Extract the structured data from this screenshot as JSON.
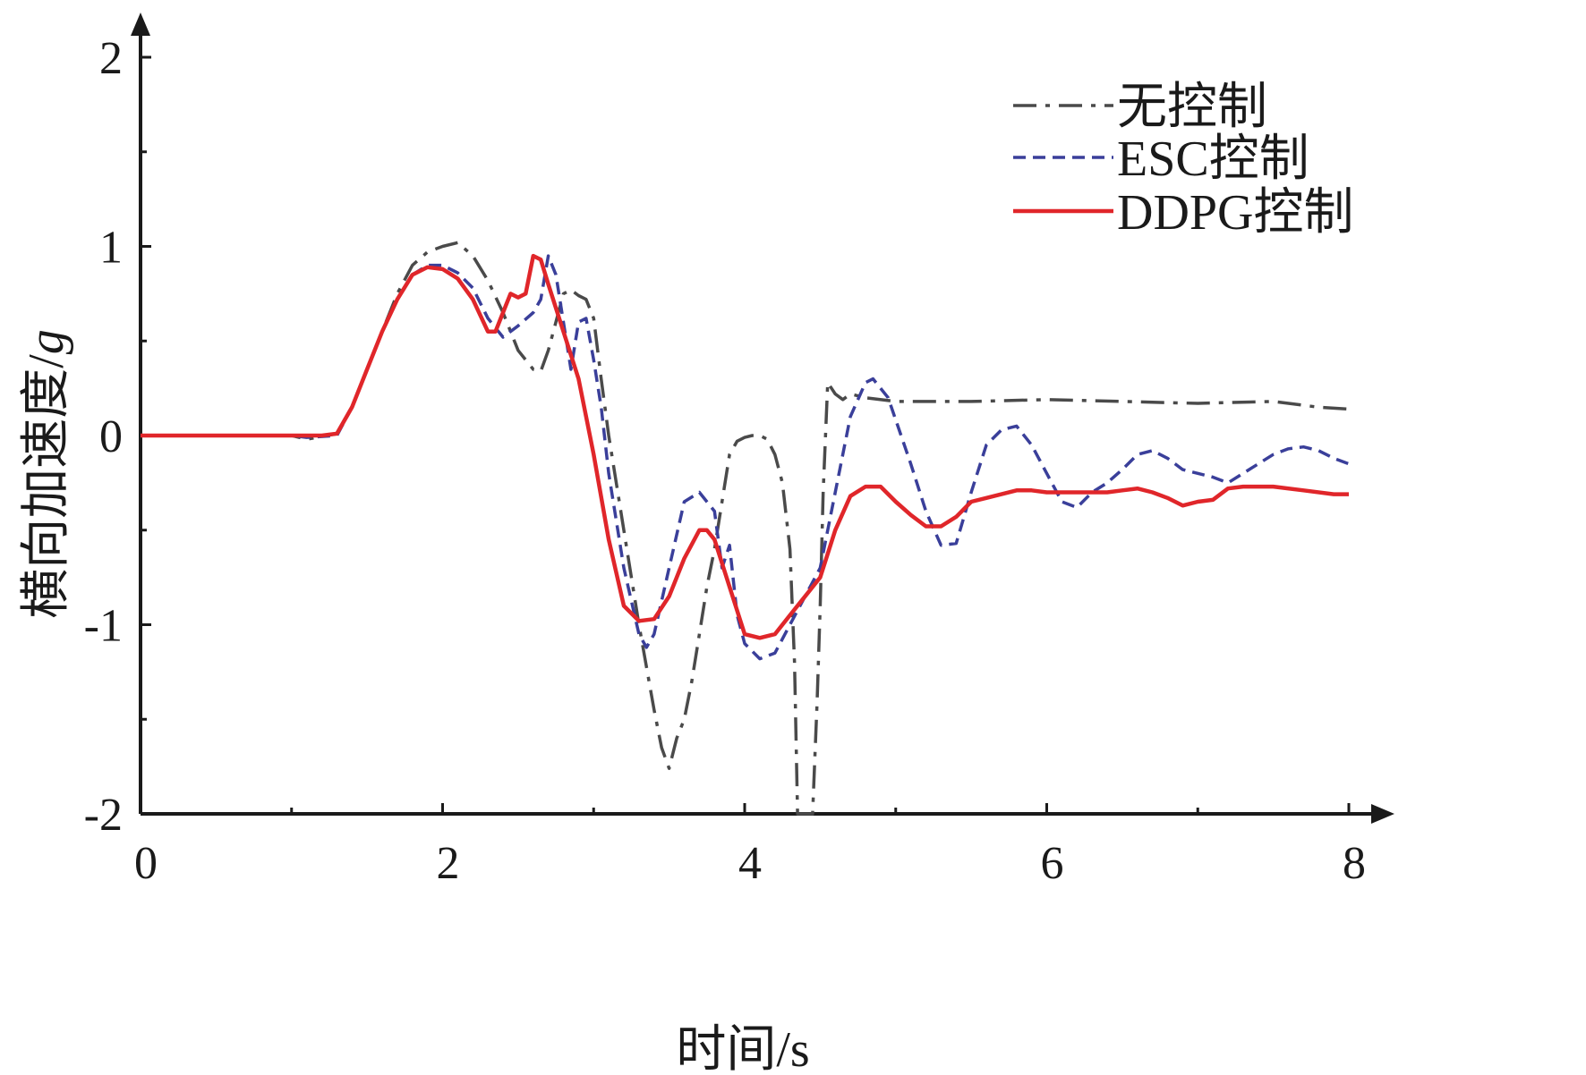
{
  "chart_data": {
    "type": "line",
    "title": "",
    "xlabel": "时间/s",
    "ylabel": "横向加速度/",
    "ylabel_unit": "g",
    "xlim": [
      0,
      8
    ],
    "ylim": [
      -2,
      2
    ],
    "x_ticks": [
      0,
      2,
      4,
      6,
      8
    ],
    "x_tick_labels": [
      "0",
      "2",
      "4",
      "6",
      "8"
    ],
    "y_ticks": [
      -2,
      -1,
      0,
      1,
      2
    ],
    "y_tick_labels": [
      "-2",
      "-1",
      "0",
      "1",
      "2"
    ],
    "grid": false,
    "legend_position": "top-right",
    "series": [
      {
        "name": "无控制",
        "color": "#4a4a4a",
        "style": "dash-dot",
        "points": [
          [
            0,
            0
          ],
          [
            1.0,
            0
          ],
          [
            1.1,
            -0.02
          ],
          [
            1.3,
            0.01
          ],
          [
            1.4,
            0.15
          ],
          [
            1.5,
            0.35
          ],
          [
            1.6,
            0.55
          ],
          [
            1.7,
            0.75
          ],
          [
            1.8,
            0.9
          ],
          [
            1.9,
            0.97
          ],
          [
            2.0,
            1.0
          ],
          [
            2.1,
            1.02
          ],
          [
            2.2,
            0.95
          ],
          [
            2.3,
            0.82
          ],
          [
            2.4,
            0.65
          ],
          [
            2.5,
            0.45
          ],
          [
            2.6,
            0.35
          ],
          [
            2.65,
            0.34
          ],
          [
            2.7,
            0.45
          ],
          [
            2.75,
            0.6
          ],
          [
            2.8,
            0.75
          ],
          [
            2.85,
            0.77
          ],
          [
            2.9,
            0.74
          ],
          [
            2.95,
            0.72
          ],
          [
            3.0,
            0.62
          ],
          [
            3.05,
            0.3
          ],
          [
            3.1,
            0.0
          ],
          [
            3.2,
            -0.5
          ],
          [
            3.3,
            -1.0
          ],
          [
            3.4,
            -1.45
          ],
          [
            3.45,
            -1.65
          ],
          [
            3.5,
            -1.76
          ],
          [
            3.55,
            -1.6
          ],
          [
            3.6,
            -1.5
          ],
          [
            3.65,
            -1.3
          ],
          [
            3.7,
            -1.05
          ],
          [
            3.75,
            -0.8
          ],
          [
            3.8,
            -0.6
          ],
          [
            3.85,
            -0.35
          ],
          [
            3.9,
            -0.1
          ],
          [
            3.95,
            -0.03
          ],
          [
            4.0,
            -0.01
          ],
          [
            4.05,
            0.0
          ],
          [
            4.1,
            0.0
          ],
          [
            4.15,
            -0.02
          ],
          [
            4.2,
            -0.1
          ],
          [
            4.25,
            -0.25
          ],
          [
            4.3,
            -0.6
          ],
          [
            4.33,
            -1.2
          ],
          [
            4.35,
            -2.0
          ],
          [
            4.45,
            -2.0
          ],
          [
            4.48,
            -1.4
          ],
          [
            4.5,
            -0.9
          ],
          [
            4.52,
            -0.3
          ],
          [
            4.55,
            0.28
          ],
          [
            4.6,
            0.22
          ],
          [
            4.65,
            0.19
          ],
          [
            4.7,
            0.22
          ],
          [
            4.8,
            0.2
          ],
          [
            5.0,
            0.18
          ],
          [
            5.5,
            0.18
          ],
          [
            6.0,
            0.19
          ],
          [
            6.5,
            0.18
          ],
          [
            7.0,
            0.17
          ],
          [
            7.5,
            0.18
          ],
          [
            7.8,
            0.15
          ],
          [
            8.0,
            0.14
          ]
        ]
      },
      {
        "name": "ESC控制",
        "color": "#3a3f9a",
        "style": "dash",
        "points": [
          [
            0,
            0
          ],
          [
            1.0,
            0
          ],
          [
            1.1,
            -0.01
          ],
          [
            1.3,
            0.0
          ],
          [
            1.4,
            0.15
          ],
          [
            1.5,
            0.35
          ],
          [
            1.6,
            0.55
          ],
          [
            1.7,
            0.72
          ],
          [
            1.8,
            0.85
          ],
          [
            1.9,
            0.9
          ],
          [
            2.0,
            0.9
          ],
          [
            2.1,
            0.86
          ],
          [
            2.2,
            0.78
          ],
          [
            2.3,
            0.62
          ],
          [
            2.4,
            0.52
          ],
          [
            2.5,
            0.58
          ],
          [
            2.6,
            0.65
          ],
          [
            2.65,
            0.72
          ],
          [
            2.7,
            0.95
          ],
          [
            2.75,
            0.85
          ],
          [
            2.8,
            0.6
          ],
          [
            2.85,
            0.35
          ],
          [
            2.9,
            0.6
          ],
          [
            2.95,
            0.62
          ],
          [
            3.0,
            0.4
          ],
          [
            3.05,
            0.15
          ],
          [
            3.1,
            -0.2
          ],
          [
            3.2,
            -0.7
          ],
          [
            3.3,
            -1.05
          ],
          [
            3.35,
            -1.12
          ],
          [
            3.4,
            -1.05
          ],
          [
            3.5,
            -0.7
          ],
          [
            3.6,
            -0.35
          ],
          [
            3.7,
            -0.3
          ],
          [
            3.8,
            -0.4
          ],
          [
            3.85,
            -0.7
          ],
          [
            3.9,
            -0.58
          ],
          [
            3.95,
            -0.95
          ],
          [
            4.0,
            -1.1
          ],
          [
            4.1,
            -1.18
          ],
          [
            4.2,
            -1.15
          ],
          [
            4.3,
            -1.0
          ],
          [
            4.4,
            -0.85
          ],
          [
            4.5,
            -0.7
          ],
          [
            4.6,
            -0.3
          ],
          [
            4.7,
            0.1
          ],
          [
            4.8,
            0.28
          ],
          [
            4.85,
            0.3
          ],
          [
            4.95,
            0.2
          ],
          [
            5.1,
            -0.15
          ],
          [
            5.2,
            -0.4
          ],
          [
            5.3,
            -0.58
          ],
          [
            5.4,
            -0.57
          ],
          [
            5.5,
            -0.3
          ],
          [
            5.6,
            -0.05
          ],
          [
            5.7,
            0.03
          ],
          [
            5.8,
            0.05
          ],
          [
            5.9,
            -0.05
          ],
          [
            6.0,
            -0.2
          ],
          [
            6.1,
            -0.35
          ],
          [
            6.2,
            -0.38
          ],
          [
            6.3,
            -0.3
          ],
          [
            6.4,
            -0.25
          ],
          [
            6.5,
            -0.18
          ],
          [
            6.6,
            -0.1
          ],
          [
            6.7,
            -0.08
          ],
          [
            6.8,
            -0.12
          ],
          [
            6.9,
            -0.18
          ],
          [
            7.0,
            -0.2
          ],
          [
            7.1,
            -0.22
          ],
          [
            7.2,
            -0.25
          ],
          [
            7.3,
            -0.2
          ],
          [
            7.4,
            -0.15
          ],
          [
            7.5,
            -0.1
          ],
          [
            7.6,
            -0.07
          ],
          [
            7.7,
            -0.06
          ],
          [
            7.8,
            -0.08
          ],
          [
            7.9,
            -0.12
          ],
          [
            8.0,
            -0.15
          ]
        ]
      },
      {
        "name": "DDPG控制",
        "color": "#e0262a",
        "style": "solid",
        "points": [
          [
            0,
            0
          ],
          [
            1.0,
            0
          ],
          [
            1.2,
            0
          ],
          [
            1.3,
            0.01
          ],
          [
            1.4,
            0.15
          ],
          [
            1.5,
            0.35
          ],
          [
            1.6,
            0.55
          ],
          [
            1.7,
            0.72
          ],
          [
            1.8,
            0.85
          ],
          [
            1.9,
            0.89
          ],
          [
            2.0,
            0.88
          ],
          [
            2.1,
            0.83
          ],
          [
            2.2,
            0.72
          ],
          [
            2.3,
            0.55
          ],
          [
            2.35,
            0.55
          ],
          [
            2.4,
            0.65
          ],
          [
            2.45,
            0.75
          ],
          [
            2.5,
            0.73
          ],
          [
            2.55,
            0.75
          ],
          [
            2.6,
            0.95
          ],
          [
            2.65,
            0.93
          ],
          [
            2.7,
            0.8
          ],
          [
            2.8,
            0.55
          ],
          [
            2.9,
            0.3
          ],
          [
            3.0,
            -0.1
          ],
          [
            3.1,
            -0.55
          ],
          [
            3.2,
            -0.9
          ],
          [
            3.3,
            -0.98
          ],
          [
            3.4,
            -0.97
          ],
          [
            3.5,
            -0.85
          ],
          [
            3.6,
            -0.65
          ],
          [
            3.7,
            -0.5
          ],
          [
            3.75,
            -0.5
          ],
          [
            3.8,
            -0.55
          ],
          [
            3.9,
            -0.8
          ],
          [
            4.0,
            -1.05
          ],
          [
            4.1,
            -1.07
          ],
          [
            4.2,
            -1.05
          ],
          [
            4.3,
            -0.95
          ],
          [
            4.4,
            -0.85
          ],
          [
            4.5,
            -0.75
          ],
          [
            4.6,
            -0.5
          ],
          [
            4.7,
            -0.32
          ],
          [
            4.8,
            -0.27
          ],
          [
            4.9,
            -0.27
          ],
          [
            5.0,
            -0.35
          ],
          [
            5.1,
            -0.42
          ],
          [
            5.2,
            -0.48
          ],
          [
            5.3,
            -0.48
          ],
          [
            5.4,
            -0.43
          ],
          [
            5.5,
            -0.35
          ],
          [
            5.6,
            -0.33
          ],
          [
            5.7,
            -0.31
          ],
          [
            5.8,
            -0.29
          ],
          [
            5.9,
            -0.29
          ],
          [
            6.0,
            -0.3
          ],
          [
            6.2,
            -0.3
          ],
          [
            6.4,
            -0.3
          ],
          [
            6.5,
            -0.29
          ],
          [
            6.6,
            -0.28
          ],
          [
            6.7,
            -0.3
          ],
          [
            6.8,
            -0.33
          ],
          [
            6.9,
            -0.37
          ],
          [
            7.0,
            -0.35
          ],
          [
            7.1,
            -0.34
          ],
          [
            7.2,
            -0.28
          ],
          [
            7.3,
            -0.27
          ],
          [
            7.5,
            -0.27
          ],
          [
            7.7,
            -0.29
          ],
          [
            7.9,
            -0.31
          ],
          [
            8.0,
            -0.31
          ]
        ]
      }
    ]
  }
}
